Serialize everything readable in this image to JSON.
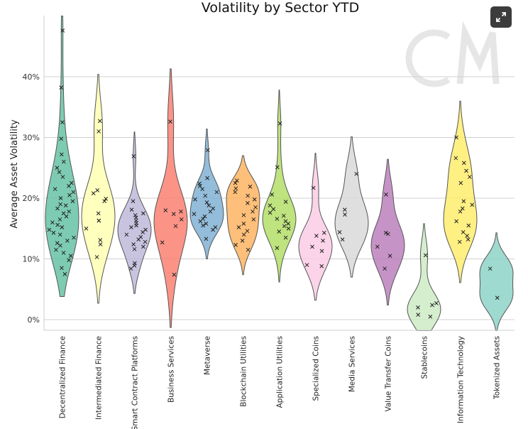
{
  "chart_data": {
    "type": "violin",
    "title": "Volatility by Sector YTD",
    "xlabel": "",
    "ylabel": "Average Asset Volatility",
    "ylim": [
      -1.8,
      50
    ],
    "yticks": [
      {
        "value": 0,
        "label": "0%"
      },
      {
        "value": 10,
        "label": "10%"
      },
      {
        "value": 20,
        "label": "20%"
      },
      {
        "value": 30,
        "label": "30%"
      },
      {
        "value": 40,
        "label": "40%"
      }
    ],
    "grid": true,
    "watermark": "CM",
    "series": [
      {
        "name": "Decentralized Finance",
        "color": "#66c2a5",
        "min": 3.8,
        "max": 50,
        "points": [
          47.6,
          38.2,
          32.5,
          29.8,
          27.2,
          26.0,
          25.0,
          24.3,
          23.5,
          22.5,
          22.0,
          21.5,
          21.0,
          20.5,
          20.0,
          19.5,
          19.0,
          18.8,
          18.3,
          17.8,
          17.5,
          17.0,
          16.5,
          16.0,
          15.6,
          15.2,
          14.8,
          14.3,
          14.0,
          13.5,
          13.0,
          12.6,
          12.2,
          11.5,
          11.0,
          10.5,
          9.8,
          8.5,
          7.5
        ]
      },
      {
        "name": "Intermediated Finance",
        "color": "#ffffb3",
        "min": 2.7,
        "max": 40.4,
        "points": [
          32.7,
          31.0,
          21.3,
          20.8,
          19.9,
          19.5,
          17.5,
          16.3,
          16.3,
          15.0,
          13.1,
          12.4,
          10.3
        ]
      },
      {
        "name": "Smart Contract Platforms",
        "color": "#bebada",
        "min": 4.3,
        "max": 30.9,
        "points": [
          26.9,
          19.5,
          18.1,
          17.5,
          17.2,
          16.8,
          16.3,
          15.9,
          15.5,
          15.2,
          14.8,
          14.4,
          14.0,
          13.6,
          13.2,
          12.8,
          12.4,
          12.0,
          11.6,
          9.3,
          8.9,
          8.4
        ]
      },
      {
        "name": "Business Services",
        "color": "#fb8072",
        "min": -1.3,
        "max": 41.3,
        "points": [
          32.6,
          18.0,
          17.8,
          17.4,
          16.5,
          15.4,
          12.7,
          7.4
        ]
      },
      {
        "name": "Metaverse",
        "color": "#80b1d3",
        "min": 10.0,
        "max": 31.4,
        "points": [
          27.9,
          23.3,
          22.4,
          22.0,
          21.5,
          21.0,
          20.4,
          19.8,
          19.3,
          18.8,
          18.3,
          17.8,
          17.4,
          17.0,
          16.6,
          16.2,
          15.8,
          15.5,
          15.2,
          14.8,
          13.3
        ]
      },
      {
        "name": "Blockchain Utilities",
        "color": "#fdb462",
        "min": 7.4,
        "max": 27.0,
        "points": [
          22.9,
          22.5,
          21.9,
          21.6,
          21.0,
          20.4,
          19.8,
          19.2,
          18.5,
          17.8,
          17.2,
          16.5,
          15.8,
          15.2,
          14.6,
          14.0,
          13.0,
          12.3,
          11.5
        ]
      },
      {
        "name": "Application Utilities",
        "color": "#b3de69",
        "min": 6.2,
        "max": 37.8,
        "points": [
          32.3,
          25.1,
          20.6,
          19.4,
          18.8,
          18.2,
          17.6,
          17.1,
          16.6,
          16.2,
          15.8,
          15.4,
          15.0,
          14.5,
          13.5,
          11.8
        ]
      },
      {
        "name": "Specialized Coins",
        "color": "#fccde5",
        "min": 3.2,
        "max": 27.4,
        "points": [
          21.7,
          14.3,
          13.8,
          13.0,
          12.0,
          11.3,
          9.0,
          8.8
        ]
      },
      {
        "name": "Media Services",
        "color": "#d9d9d9",
        "min": 7.0,
        "max": 30.1,
        "points": [
          24.0,
          18.1,
          17.3,
          14.4,
          13.2
        ]
      },
      {
        "name": "Value Transfer Coins",
        "color": "#bc80bd",
        "min": 2.4,
        "max": 26.4,
        "points": [
          20.6,
          14.3,
          14.1,
          12.0,
          10.5,
          8.4
        ]
      },
      {
        "name": "Stablecoins",
        "color": "#ccebc5",
        "min": -1.8,
        "max": 15.8,
        "points": [
          10.6,
          2.7,
          2.4,
          2.0,
          0.8,
          0.5
        ]
      },
      {
        "name": "Information Technology",
        "color": "#ffed6f",
        "min": 6.1,
        "max": 36.0,
        "points": [
          30.0,
          26.6,
          25.8,
          24.5,
          23.5,
          22.5,
          19.5,
          18.9,
          18.3,
          17.8,
          16.2,
          15.5,
          14.4,
          13.8,
          13.2,
          12.8
        ]
      },
      {
        "name": "Tokenized Assets",
        "color": "#8dd3c7",
        "min": -1.8,
        "max": 14.3,
        "points": [
          8.4,
          3.6
        ]
      }
    ]
  },
  "ui": {
    "expand_icon": "expand-icon"
  }
}
